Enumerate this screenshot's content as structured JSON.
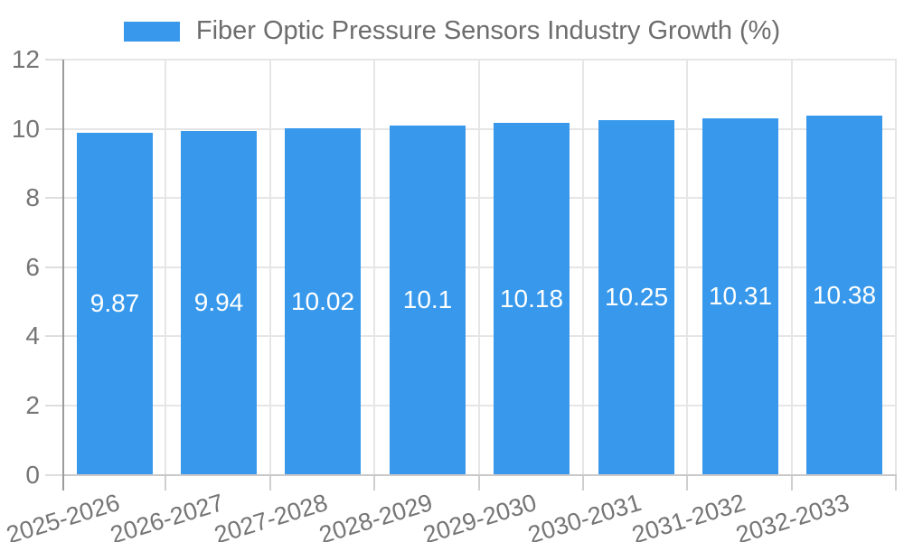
{
  "chart_data": {
    "type": "bar",
    "title": "Fiber Optic Pressure Sensors Industry Growth (%)",
    "categories": [
      "2025-2026",
      "2026-2027",
      "2027-2028",
      "2028-2029",
      "2029-2030",
      "2030-2031",
      "2031-2032",
      "2032-2033"
    ],
    "values": [
      9.87,
      9.94,
      10.02,
      10.1,
      10.18,
      10.25,
      10.31,
      10.38
    ],
    "value_labels": [
      "9.87",
      "9.94",
      "10.02",
      "10.1",
      "10.18",
      "10.25",
      "10.31",
      "10.38"
    ],
    "xlabel": "",
    "ylabel": "",
    "ylim": [
      0,
      12
    ],
    "yticks": [
      0,
      2,
      4,
      6,
      8,
      10,
      12
    ],
    "grid": true,
    "legend_position": "top-center",
    "bar_color": "#3899ec",
    "bar_label_color": "#ffffff",
    "axis_text_color": "#757575",
    "grid_color": "#e6e6e6",
    "axis_line_color": "#9b9b9b"
  }
}
